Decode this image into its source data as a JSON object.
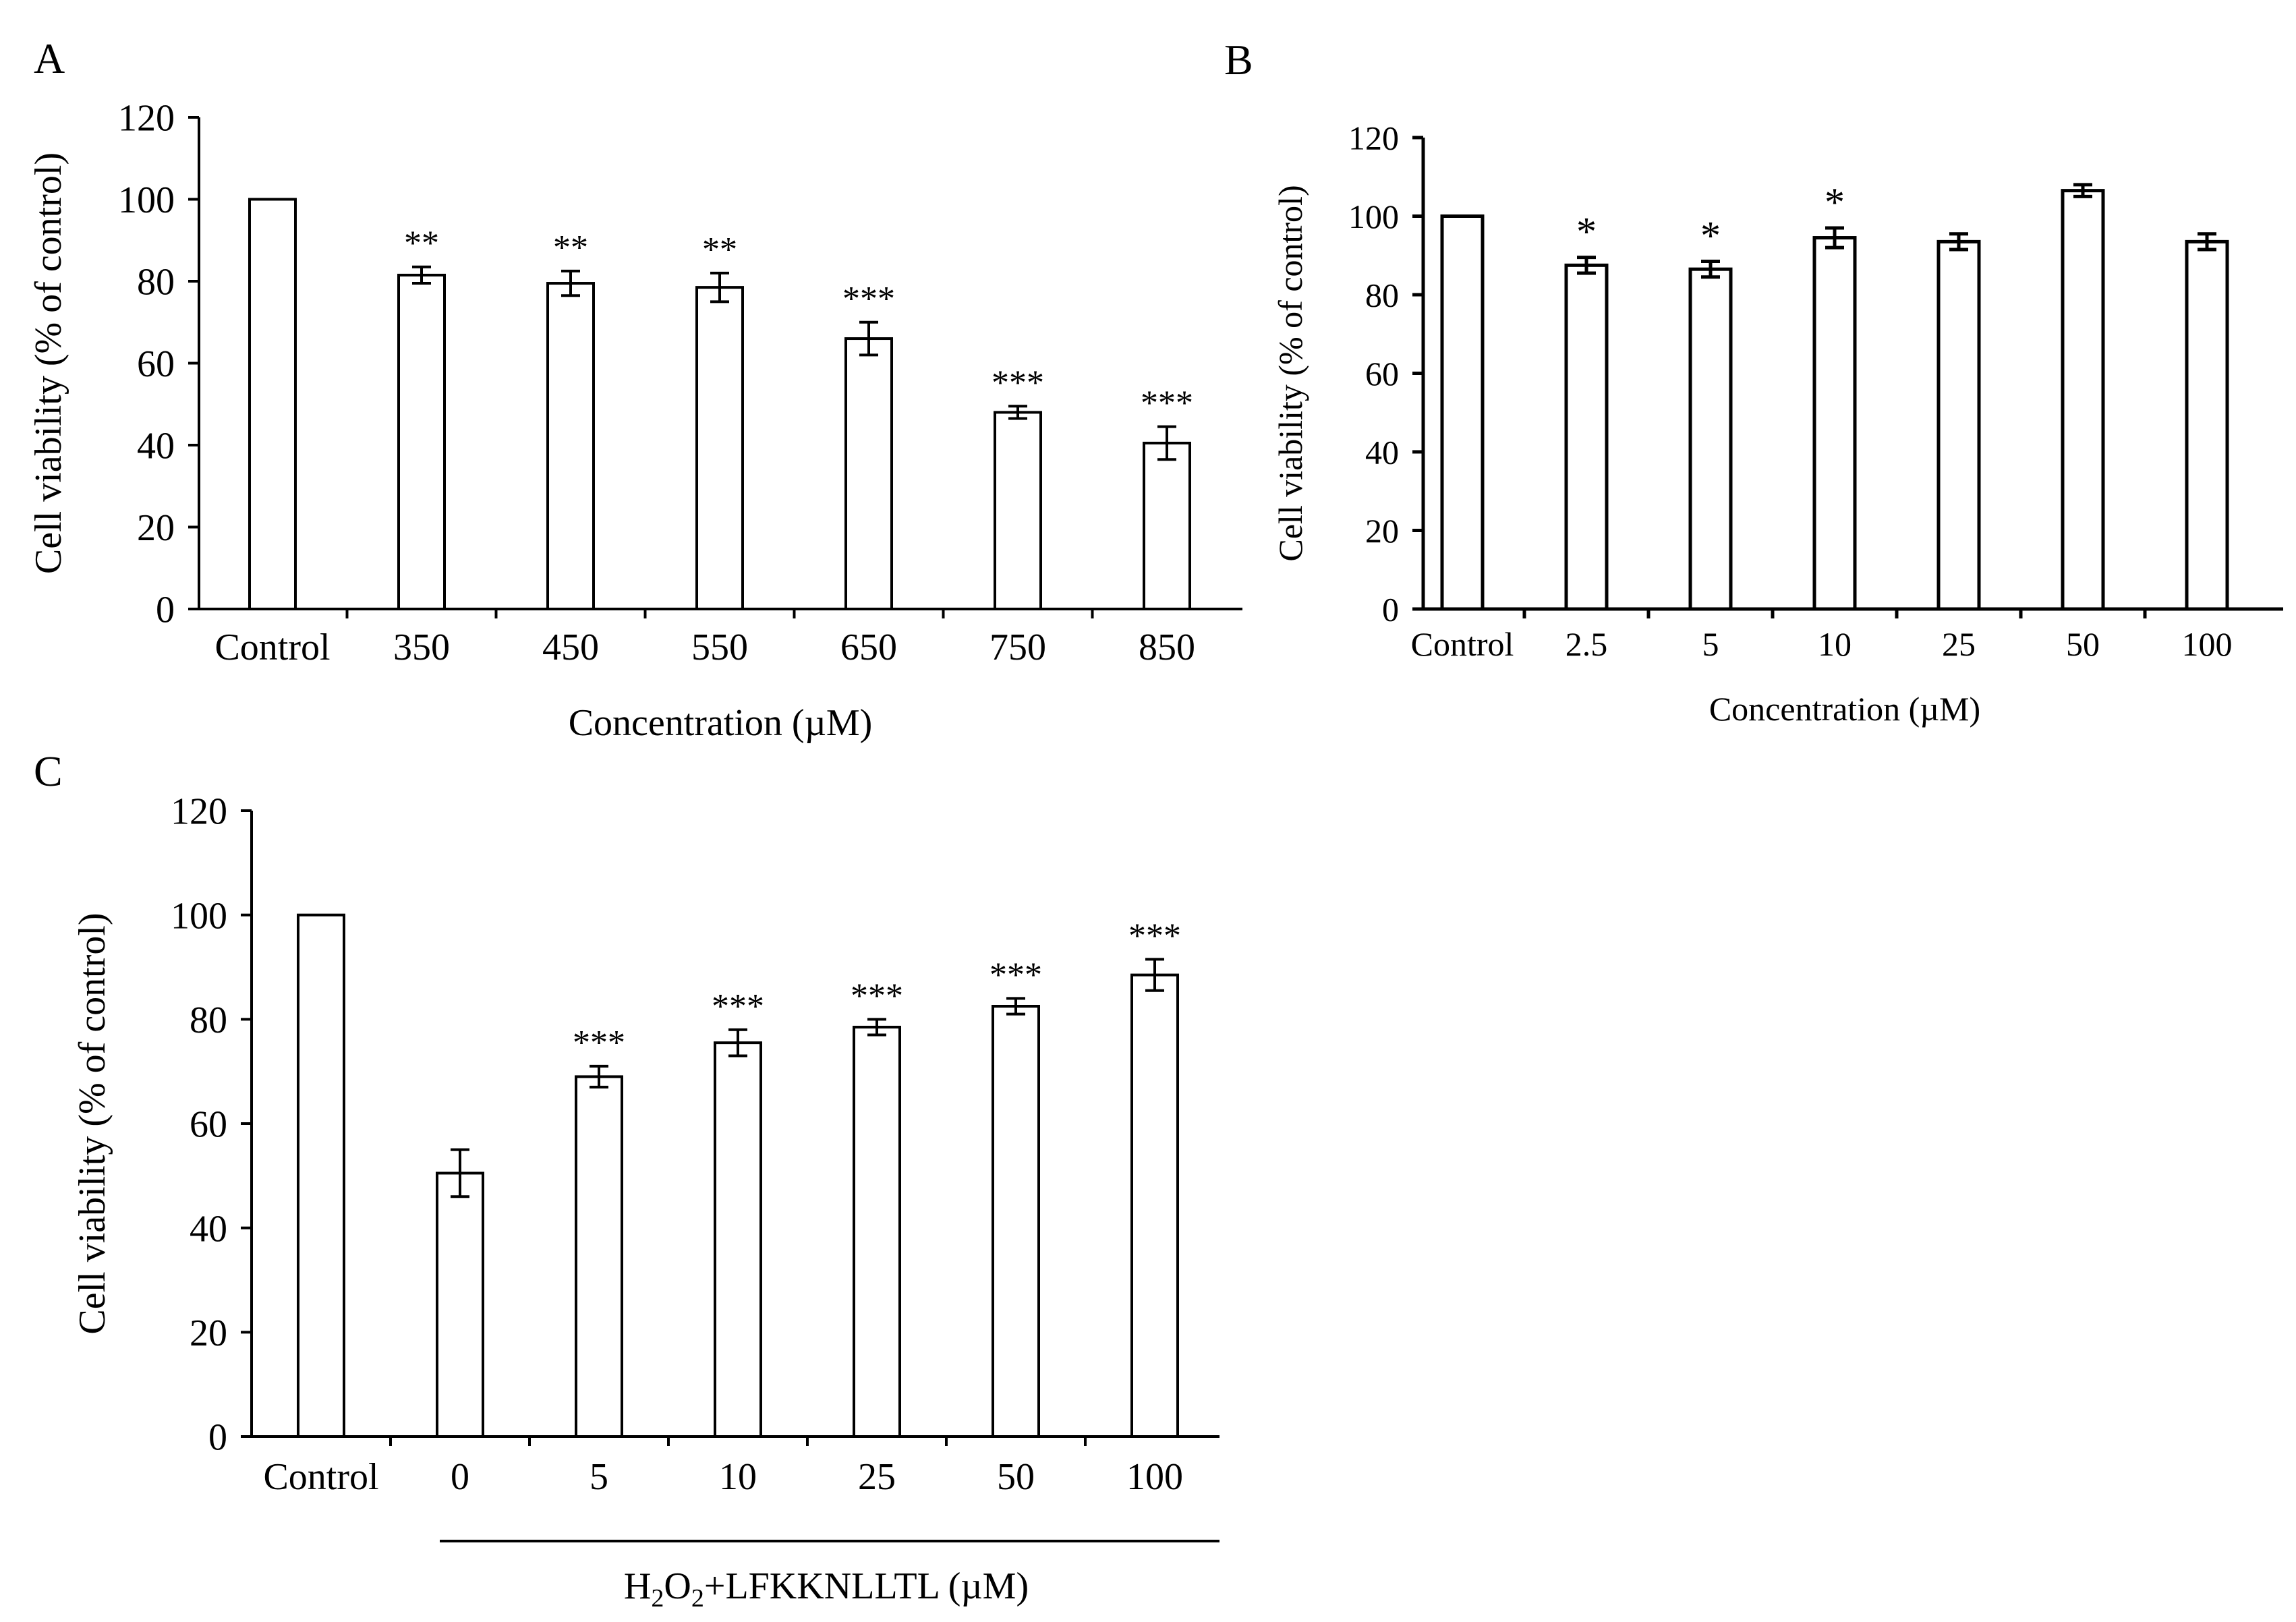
{
  "figure": {
    "panels": [
      "A",
      "B",
      "C"
    ]
  },
  "chart_data": [
    {
      "panel": "A",
      "type": "bar",
      "title": "",
      "xlabel": "Concentration (µM)",
      "ylabel": "Cell viability (% of control)",
      "ylim": [
        0,
        120
      ],
      "yticks": [
        "0",
        "20",
        "40",
        "60",
        "80",
        "100",
        "120"
      ],
      "categories": [
        "Control",
        "350",
        "450",
        "550",
        "650",
        "750",
        "850"
      ],
      "values": [
        100,
        81.5,
        79.5,
        78.5,
        66,
        48,
        40.5
      ],
      "errors": [
        0,
        2,
        3,
        3.5,
        4,
        1.5,
        4
      ],
      "significance": [
        "",
        "**",
        "**",
        "**",
        "***",
        "***",
        "***"
      ],
      "grid": false
    },
    {
      "panel": "B",
      "type": "bar",
      "title": "",
      "xlabel": "Concentration (µM)",
      "ylabel": "Cell viability (% of control)",
      "ylim": [
        0,
        120
      ],
      "yticks": [
        "0",
        "20",
        "40",
        "60",
        "80",
        "100",
        "120"
      ],
      "categories": [
        "Control",
        "2.5",
        "5",
        "10",
        "25",
        "50",
        "100"
      ],
      "values": [
        100,
        87.5,
        86.5,
        94.5,
        93.5,
        106.5,
        93.5
      ],
      "errors": [
        0,
        2,
        2,
        2.5,
        2,
        1.5,
        2
      ],
      "significance": [
        "",
        "*",
        "*",
        "*",
        "",
        "",
        ""
      ],
      "grid": false
    },
    {
      "panel": "C",
      "type": "bar",
      "title": "",
      "xlabel": "H2O2+LFKKNLLTL (µM)",
      "xlabel_parts": {
        "h": "H",
        "sub1": "2",
        "o": "O",
        "sub2": "2",
        "rest": "+LFKKNLLTL (µM)"
      },
      "ylabel": "Cell viability (% of control)",
      "ylim": [
        0,
        120
      ],
      "yticks": [
        "0",
        "20",
        "40",
        "60",
        "80",
        "100",
        "120"
      ],
      "categories": [
        "Control",
        "0",
        "5",
        "10",
        "25",
        "50",
        "100"
      ],
      "values": [
        100,
        50.5,
        69,
        75.5,
        78.5,
        82.5,
        88.5
      ],
      "errors": [
        0,
        4.5,
        2,
        2.5,
        1.5,
        1.5,
        3
      ],
      "significance": [
        "",
        "",
        "***",
        "***",
        "***",
        "***",
        "***"
      ],
      "grid": false
    }
  ]
}
